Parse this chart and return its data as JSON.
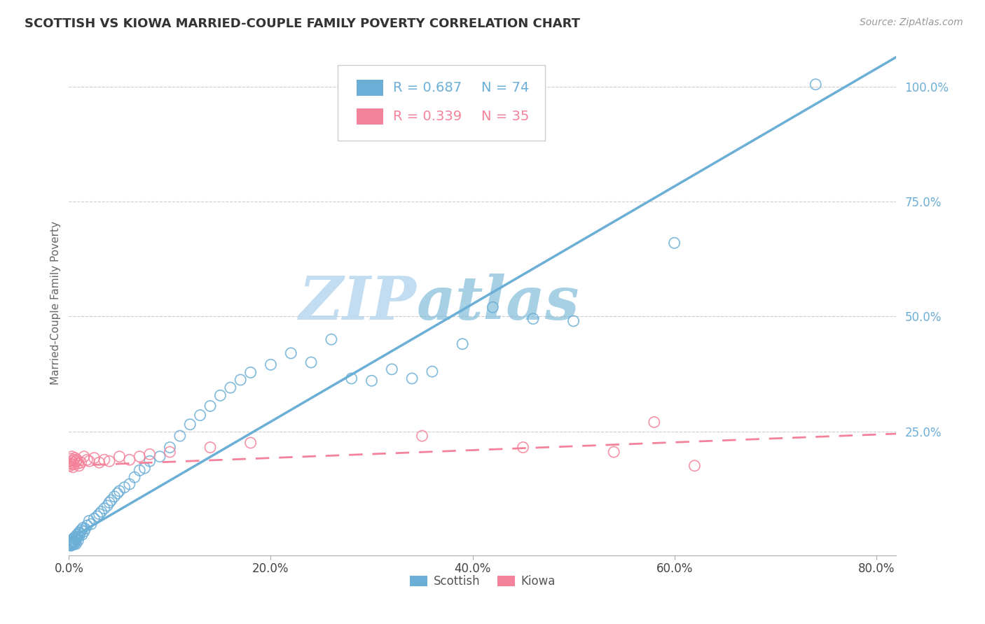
{
  "title": "SCOTTISH VS KIOWA MARRIED-COUPLE FAMILY POVERTY CORRELATION CHART",
  "source": "Source: ZipAtlas.com",
  "ylabel": "Married-Couple Family Poverty",
  "xlim": [
    0.0,
    0.82
  ],
  "ylim": [
    -0.02,
    1.08
  ],
  "xtick_labels": [
    "0.0%",
    "20.0%",
    "40.0%",
    "60.0%",
    "80.0%"
  ],
  "xtick_values": [
    0.0,
    0.2,
    0.4,
    0.6,
    0.8
  ],
  "ytick_labels": [
    "25.0%",
    "50.0%",
    "75.0%",
    "100.0%"
  ],
  "ytick_values": [
    0.25,
    0.5,
    0.75,
    1.0
  ],
  "legend_r_scottish": "R = 0.687",
  "legend_n_scottish": "N = 74",
  "legend_r_kiowa": "R = 0.339",
  "legend_n_kiowa": "N = 35",
  "scottish_color": "#6baed6",
  "kiowa_color": "#f4829a",
  "watermark_color": "#cce4f5",
  "scottish_points": [
    [
      0.001,
      0.002
    ],
    [
      0.001,
      0.005
    ],
    [
      0.002,
      0.003
    ],
    [
      0.002,
      0.008
    ],
    [
      0.002,
      0.001
    ],
    [
      0.003,
      0.012
    ],
    [
      0.003,
      0.006
    ],
    [
      0.003,
      0.003
    ],
    [
      0.004,
      0.01
    ],
    [
      0.004,
      0.007
    ],
    [
      0.004,
      0.015
    ],
    [
      0.005,
      0.004
    ],
    [
      0.005,
      0.018
    ],
    [
      0.005,
      0.011
    ],
    [
      0.006,
      0.008
    ],
    [
      0.006,
      0.02
    ],
    [
      0.007,
      0.014
    ],
    [
      0.007,
      0.005
    ],
    [
      0.008,
      0.018
    ],
    [
      0.008,
      0.025
    ],
    [
      0.009,
      0.012
    ],
    [
      0.01,
      0.022
    ],
    [
      0.01,
      0.03
    ],
    [
      0.011,
      0.028
    ],
    [
      0.012,
      0.035
    ],
    [
      0.013,
      0.025
    ],
    [
      0.014,
      0.04
    ],
    [
      0.015,
      0.032
    ],
    [
      0.016,
      0.038
    ],
    [
      0.018,
      0.045
    ],
    [
      0.02,
      0.055
    ],
    [
      0.022,
      0.048
    ],
    [
      0.025,
      0.06
    ],
    [
      0.028,
      0.065
    ],
    [
      0.03,
      0.07
    ],
    [
      0.032,
      0.075
    ],
    [
      0.035,
      0.082
    ],
    [
      0.038,
      0.088
    ],
    [
      0.04,
      0.095
    ],
    [
      0.042,
      0.1
    ],
    [
      0.045,
      0.108
    ],
    [
      0.048,
      0.115
    ],
    [
      0.05,
      0.12
    ],
    [
      0.055,
      0.128
    ],
    [
      0.06,
      0.135
    ],
    [
      0.065,
      0.15
    ],
    [
      0.07,
      0.165
    ],
    [
      0.075,
      0.17
    ],
    [
      0.08,
      0.185
    ],
    [
      0.09,
      0.195
    ],
    [
      0.1,
      0.215
    ],
    [
      0.11,
      0.24
    ],
    [
      0.12,
      0.265
    ],
    [
      0.13,
      0.285
    ],
    [
      0.14,
      0.305
    ],
    [
      0.15,
      0.328
    ],
    [
      0.16,
      0.345
    ],
    [
      0.17,
      0.362
    ],
    [
      0.18,
      0.378
    ],
    [
      0.2,
      0.395
    ],
    [
      0.22,
      0.42
    ],
    [
      0.24,
      0.4
    ],
    [
      0.26,
      0.45
    ],
    [
      0.28,
      0.365
    ],
    [
      0.3,
      0.36
    ],
    [
      0.32,
      0.385
    ],
    [
      0.34,
      0.365
    ],
    [
      0.36,
      0.38
    ],
    [
      0.39,
      0.44
    ],
    [
      0.42,
      0.52
    ],
    [
      0.46,
      0.495
    ],
    [
      0.5,
      0.49
    ],
    [
      0.6,
      0.66
    ],
    [
      0.74,
      1.005
    ]
  ],
  "kiowa_points": [
    [
      0.001,
      0.18
    ],
    [
      0.001,
      0.175
    ],
    [
      0.002,
      0.19
    ],
    [
      0.002,
      0.185
    ],
    [
      0.003,
      0.178
    ],
    [
      0.003,
      0.195
    ],
    [
      0.004,
      0.182
    ],
    [
      0.004,
      0.172
    ],
    [
      0.005,
      0.188
    ],
    [
      0.005,
      0.178
    ],
    [
      0.006,
      0.192
    ],
    [
      0.007,
      0.185
    ],
    [
      0.008,
      0.188
    ],
    [
      0.009,
      0.18
    ],
    [
      0.01,
      0.175
    ],
    [
      0.012,
      0.182
    ],
    [
      0.015,
      0.195
    ],
    [
      0.018,
      0.188
    ],
    [
      0.02,
      0.185
    ],
    [
      0.025,
      0.192
    ],
    [
      0.03,
      0.182
    ],
    [
      0.035,
      0.188
    ],
    [
      0.04,
      0.185
    ],
    [
      0.05,
      0.195
    ],
    [
      0.06,
      0.188
    ],
    [
      0.07,
      0.195
    ],
    [
      0.08,
      0.2
    ],
    [
      0.1,
      0.205
    ],
    [
      0.14,
      0.215
    ],
    [
      0.18,
      0.225
    ],
    [
      0.35,
      0.24
    ],
    [
      0.45,
      0.215
    ],
    [
      0.54,
      0.205
    ],
    [
      0.58,
      0.27
    ],
    [
      0.62,
      0.175
    ]
  ],
  "reg_scottish_slope": 1.28,
  "reg_scottish_intercept": 0.015,
  "reg_kiowa_slope": 0.085,
  "reg_kiowa_intercept": 0.175
}
